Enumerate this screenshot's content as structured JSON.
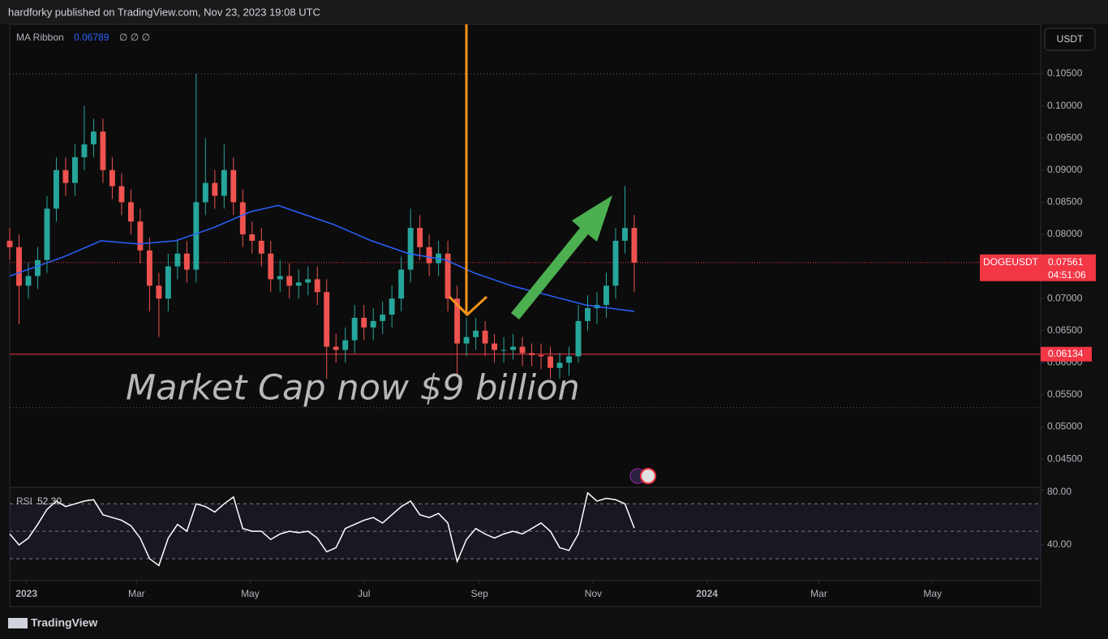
{
  "header": "hardforky published on TradingView.com, Nov 23, 2023 19:08 UTC",
  "footer": "TradingView",
  "chart_data": [
    {
      "type": "candlestick",
      "currency": "USDT",
      "annotation": "Market Cap now $9 billion",
      "up_color": "#26a69a",
      "down_color": "#ef5350",
      "x": [
        -9,
        -4,
        1,
        6,
        11,
        16,
        21,
        26,
        31,
        36,
        41,
        46,
        51,
        56,
        61,
        66,
        71,
        76,
        81,
        86,
        91,
        96,
        101,
        106,
        111,
        116,
        121,
        126,
        131,
        136,
        141,
        146,
        151,
        156,
        161,
        166,
        171,
        176,
        181,
        186,
        191,
        196,
        201,
        206,
        211,
        216,
        221,
        226,
        231,
        236,
        241,
        246,
        251,
        256,
        261,
        266,
        271,
        276,
        281,
        286,
        291,
        296,
        301,
        306,
        311,
        316,
        321,
        326
      ],
      "open": [
        0.079,
        0.078,
        0.072,
        0.0735,
        0.076,
        0.084,
        0.09,
        0.088,
        0.092,
        0.094,
        0.096,
        0.09,
        0.0875,
        0.085,
        0.082,
        0.0775,
        0.072,
        0.07,
        0.075,
        0.077,
        0.0745,
        0.085,
        0.088,
        0.086,
        0.09,
        0.085,
        0.08,
        0.079,
        0.077,
        0.073,
        0.0735,
        0.072,
        0.0725,
        0.073,
        0.071,
        0.0625,
        0.062,
        0.0635,
        0.067,
        0.0655,
        0.0665,
        0.0675,
        0.07,
        0.0745,
        0.081,
        0.078,
        0.0755,
        0.077,
        0.07,
        0.063,
        0.064,
        0.065,
        0.063,
        0.062,
        0.062,
        0.0625,
        0.0615,
        0.0612,
        0.061,
        0.0592,
        0.06,
        0.061,
        0.0665,
        0.0685,
        0.069,
        0.072,
        0.079,
        0.081
      ],
      "high": [
        0.081,
        0.08,
        0.0755,
        0.078,
        0.086,
        0.092,
        0.092,
        0.094,
        0.1,
        0.098,
        0.098,
        0.092,
        0.0895,
        0.087,
        0.084,
        0.0795,
        0.074,
        0.077,
        0.079,
        0.079,
        0.105,
        0.095,
        0.09,
        0.094,
        0.092,
        0.087,
        0.082,
        0.081,
        0.079,
        0.076,
        0.0755,
        0.0745,
        0.075,
        0.075,
        0.073,
        0.0645,
        0.0655,
        0.069,
        0.069,
        0.0685,
        0.0695,
        0.072,
        0.0765,
        0.084,
        0.083,
        0.08,
        0.079,
        0.079,
        0.072,
        0.067,
        0.067,
        0.0665,
        0.0645,
        0.064,
        0.0645,
        0.064,
        0.063,
        0.063,
        0.0625,
        0.0615,
        0.0625,
        0.069,
        0.0705,
        0.071,
        0.074,
        0.081,
        0.0875,
        0.083
      ],
      "low": [
        0.076,
        0.066,
        0.07,
        0.0715,
        0.074,
        0.082,
        0.086,
        0.086,
        0.09,
        0.092,
        0.088,
        0.0855,
        0.083,
        0.08,
        0.0755,
        0.068,
        0.064,
        0.068,
        0.073,
        0.0725,
        0.0725,
        0.083,
        0.084,
        0.084,
        0.083,
        0.078,
        0.077,
        0.075,
        0.071,
        0.071,
        0.07,
        0.07,
        0.0705,
        0.069,
        0.0575,
        0.06,
        0.06,
        0.0615,
        0.0635,
        0.0635,
        0.0645,
        0.0655,
        0.068,
        0.0725,
        0.076,
        0.0735,
        0.0735,
        0.068,
        0.058,
        0.061,
        0.062,
        0.061,
        0.06,
        0.06,
        0.0605,
        0.0595,
        0.0595,
        0.059,
        0.0575,
        0.0575,
        0.058,
        0.06,
        0.065,
        0.066,
        0.067,
        0.07,
        0.077,
        0.071
      ],
      "close": [
        0.078,
        0.072,
        0.0735,
        0.076,
        0.084,
        0.09,
        0.088,
        0.092,
        0.094,
        0.096,
        0.09,
        0.0875,
        0.085,
        0.082,
        0.0775,
        0.072,
        0.07,
        0.075,
        0.077,
        0.0745,
        0.085,
        0.088,
        0.086,
        0.09,
        0.085,
        0.08,
        0.079,
        0.077,
        0.073,
        0.0735,
        0.072,
        0.0725,
        0.073,
        0.071,
        0.0625,
        0.062,
        0.0635,
        0.067,
        0.0655,
        0.0665,
        0.0675,
        0.07,
        0.0745,
        0.081,
        0.078,
        0.0755,
        0.077,
        0.07,
        0.063,
        0.064,
        0.065,
        0.063,
        0.062,
        0.062,
        0.0625,
        0.0615,
        0.0612,
        0.061,
        0.0592,
        0.06,
        0.061,
        0.0665,
        0.0685,
        0.069,
        0.072,
        0.079,
        0.081,
        0.0756
      ],
      "ma": {
        "name": "MA Ribbon",
        "value_text": "0.06789",
        "extra": "∅ ∅ ∅",
        "color": "#2962ff",
        "x": [
          -9,
          20,
          40,
          60,
          80,
          100,
          120,
          135,
          145,
          165,
          185,
          205,
          225,
          240,
          260,
          280,
          300,
          326
        ],
        "values": [
          0.0735,
          0.0765,
          0.079,
          0.0785,
          0.079,
          0.081,
          0.0835,
          0.0845,
          0.0835,
          0.0815,
          0.079,
          0.077,
          0.076,
          0.074,
          0.072,
          0.0705,
          0.069,
          0.068
        ]
      },
      "levels": [
        0.105,
        0.053
      ],
      "support": {
        "value": 0.06134,
        "label": "0.06134",
        "color": "#f23645"
      },
      "last": {
        "symbol": "DOGEUSDT",
        "value": 0.07561,
        "label": "0.07561",
        "countdown": "04:51:06",
        "color": "#f23645"
      },
      "xlim": [
        -9,
        544
      ],
      "xticks": [
        {
          "value": 0,
          "label": "2023"
        },
        {
          "value": 59,
          "label": "Mar"
        },
        {
          "value": 120,
          "label": "May"
        },
        {
          "value": 181,
          "label": "Jul"
        },
        {
          "value": 243,
          "label": "Sep"
        },
        {
          "value": 304,
          "label": "Nov"
        },
        {
          "value": 365,
          "label": "2024"
        },
        {
          "value": 425,
          "label": "Mar"
        },
        {
          "value": 486,
          "label": "May"
        }
      ],
      "ylim": [
        0.0406,
        0.1127
      ],
      "yticks": [
        {
          "value": 0.045,
          "label": "0.04500"
        },
        {
          "value": 0.05,
          "label": "0.05000"
        },
        {
          "value": 0.055,
          "label": "0.05500"
        },
        {
          "value": 0.06,
          "label": "0.06000"
        },
        {
          "value": 0.065,
          "label": "0.06500"
        },
        {
          "value": 0.07,
          "label": "0.07000"
        },
        {
          "value": 0.075,
          "label": "0.07500"
        },
        {
          "value": 0.08,
          "label": "0.08000"
        },
        {
          "value": 0.085,
          "label": "0.08500"
        },
        {
          "value": 0.09,
          "label": "0.09000"
        },
        {
          "value": 0.095,
          "label": "0.09500"
        },
        {
          "value": 0.1,
          "label": "0.10000"
        },
        {
          "value": 0.105,
          "label": "0.10500"
        }
      ]
    },
    {
      "type": "line",
      "title": "RSI",
      "value_text": "52.30",
      "color": "#ffffff",
      "values": [
        48,
        40,
        45,
        55,
        66,
        72,
        68,
        70,
        72,
        73,
        62,
        60,
        58,
        54,
        45,
        30,
        25,
        45,
        55,
        50,
        70,
        68,
        64,
        70,
        75,
        52,
        50,
        50,
        44,
        48,
        50,
        49,
        50,
        45,
        35,
        38,
        52,
        55,
        58,
        60,
        56,
        62,
        68,
        72,
        62,
        60,
        63,
        56,
        28,
        44,
        52,
        48,
        45,
        48,
        50,
        48,
        52,
        56,
        50,
        38,
        36,
        48,
        78,
        72,
        74,
        73,
        70,
        52.3
      ],
      "levels": [
        30,
        50,
        70
      ],
      "ylim": [
        14,
        82
      ],
      "yticks": [
        {
          "value": 40,
          "label": "40.00"
        },
        {
          "value": 80,
          "label": "80.00"
        }
      ]
    }
  ]
}
